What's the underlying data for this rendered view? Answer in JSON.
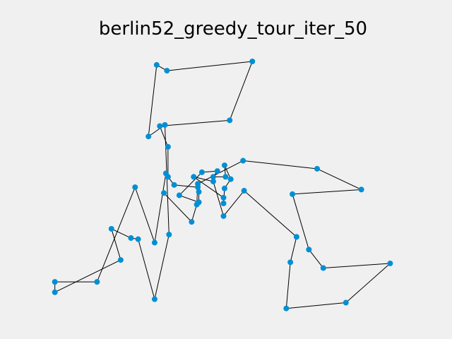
{
  "chart_data": {
    "type": "scatter",
    "title": "berlin52_greedy_tour_iter_50",
    "xlabel": "",
    "ylabel": "",
    "grid": false,
    "axes_visible": false,
    "marker_color": "#008fd5",
    "line_color": "#000000",
    "background_color": "#f0f0f0",
    "xlim": [
      0,
      1780
    ],
    "ylim": [
      1175,
      0
    ],
    "tour": [
      [
        565,
        575
      ],
      [
        510,
        875
      ],
      [
        415,
        635
      ],
      [
        230,
        1045
      ],
      [
        25,
        1045
      ],
      [
        25,
        1090
      ],
      [
        345,
        950
      ],
      [
        300,
        815
      ],
      [
        395,
        855
      ],
      [
        430,
        860
      ],
      [
        510,
        1120
      ],
      [
        580,
        840
      ],
      [
        560,
        365
      ],
      [
        480,
        415
      ],
      [
        520,
        105
      ],
      [
        570,
        130
      ],
      [
        985,
        90
      ],
      [
        875,
        345
      ],
      [
        535,
        370
      ],
      [
        575,
        460
      ],
      [
        575,
        590
      ],
      [
        605,
        625
      ],
      [
        720,
        635
      ],
      [
        725,
        655
      ],
      [
        725,
        700
      ],
      [
        630,
        670
      ],
      [
        740,
        570
      ],
      [
        815,
        565
      ],
      [
        795,
        590
      ],
      [
        855,
        590
      ],
      [
        850,
        540
      ],
      [
        880,
        600
      ],
      [
        850,
        640
      ],
      [
        845,
        705
      ],
      [
        845,
        680
      ],
      [
        700,
        590
      ],
      [
        795,
        610
      ],
      [
        845,
        760
      ],
      [
        945,
        650
      ],
      [
        1200,
        850
      ],
      [
        1170,
        960
      ],
      [
        1150,
        1160
      ],
      [
        1440,
        1135
      ],
      [
        1655,
        965
      ],
      [
        1330,
        985
      ],
      [
        1260,
        905
      ],
      [
        1180,
        665
      ],
      [
        1515,
        645
      ],
      [
        1300,
        555
      ],
      [
        940,
        520
      ],
      [
        720,
        620
      ],
      [
        715,
        710
      ],
      [
        690,
        785
      ],
      [
        555,
        660
      ]
    ]
  }
}
